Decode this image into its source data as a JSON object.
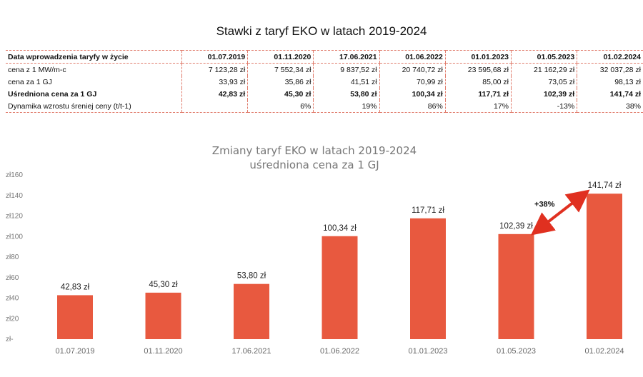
{
  "page_title": "Stawki z taryf EKO w latach 2019-2024",
  "table": {
    "header_label": "Data wprowadzenia taryfy w życie",
    "dates": [
      "01.07.2019",
      "01.11.2020",
      "17.06.2021",
      "01.06.2022",
      "01.01.2023",
      "01.05.2023",
      "01.02.2024"
    ],
    "rows": [
      {
        "label": "cena z 1 MW/m-c",
        "values": [
          "7 123,28 zł",
          "7 552,34 zł",
          "9 837,52 zł",
          "20 740,72 zł",
          "23 595,68 zł",
          "21 162,29 zł",
          "32 037,28 zł"
        ],
        "bold": false
      },
      {
        "label": "cena za 1 GJ",
        "values": [
          "33,93 zł",
          "35,86 zł",
          "41,51 zł",
          "70,99 zł",
          "85,00 zł",
          "73,05 zł",
          "98,13 zł"
        ],
        "bold": false
      },
      {
        "label": "Uśredniona cena za 1 GJ",
        "values": [
          "42,83 zł",
          "45,30 zł",
          "53,80 zł",
          "100,34 zł",
          "117,71 zł",
          "102,39 zł",
          "141,74 zł"
        ],
        "bold": true
      },
      {
        "label": "Dynamika wzrostu śreniej ceny (t/t-1)",
        "values": [
          "",
          "6%",
          "19%",
          "86%",
          "17%",
          "-13%",
          "38%"
        ],
        "bold": false
      }
    ]
  },
  "chart_data": {
    "type": "bar",
    "title": "Zmiany taryf EKO w latach 2019-2024",
    "subtitle": "uśredniona cena za 1 GJ",
    "categories": [
      "01.07.2019",
      "01.11.2020",
      "17.06.2021",
      "01.06.2022",
      "01.01.2023",
      "01.05.2023",
      "01.02.2024"
    ],
    "values": [
      42.83,
      45.3,
      53.8,
      100.34,
      117.71,
      102.39,
      141.74
    ],
    "value_labels": [
      "42,83 zł",
      "45,30 zł",
      "53,80 zł",
      "100,34 zł",
      "117,71 zł",
      "102,39 zł",
      "141,74 zł"
    ],
    "ylim": [
      0,
      160
    ],
    "y_ticks": [
      "zł-",
      "zł20",
      "zł40",
      "zł60",
      "zł80",
      "zł100",
      "zł120",
      "zł140",
      "zł160"
    ],
    "grid": false,
    "bar_color": "#e8593f",
    "annotation": {
      "text": "+38%",
      "from_index": 5,
      "to_index": 6,
      "color": "#e03020"
    }
  }
}
